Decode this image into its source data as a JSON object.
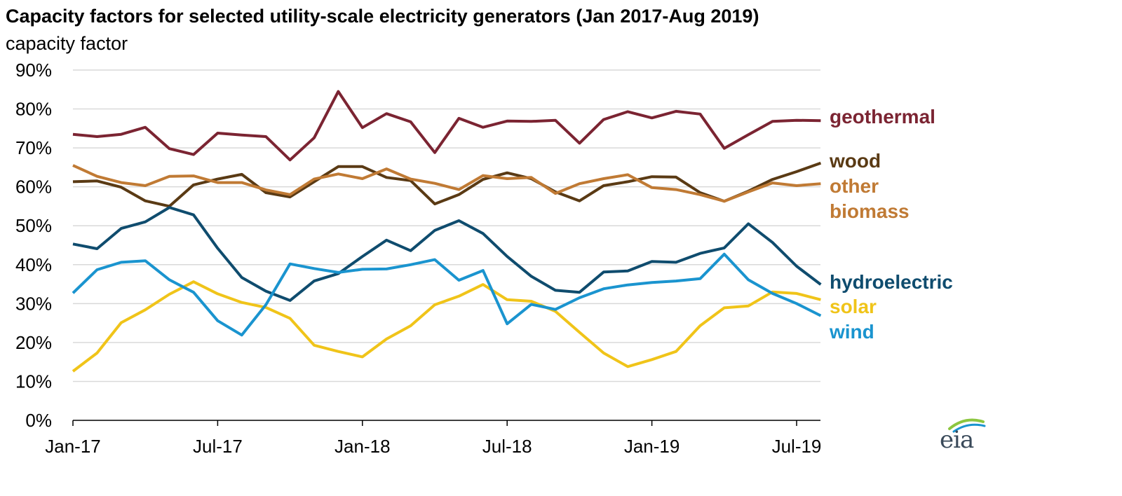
{
  "title": "Capacity factors for selected utility-scale electricity generators (Jan 2017-Aug 2019)",
  "subtitle": "capacity factor",
  "logo_text": "eia",
  "chart_data": {
    "type": "line",
    "title": "Capacity factors for selected utility-scale electricity generators (Jan 2017-Aug 2019)",
    "ylabel": "capacity factor",
    "xlabel": "",
    "ylim": [
      0,
      90
    ],
    "y_ticks": [
      "0%",
      "10%",
      "20%",
      "30%",
      "40%",
      "50%",
      "60%",
      "70%",
      "80%",
      "90%"
    ],
    "y_tick_values": [
      0,
      10,
      20,
      30,
      40,
      50,
      60,
      70,
      80,
      90
    ],
    "x_tick_labels": [
      "Jan-17",
      "Jul-17",
      "Jan-18",
      "Jul-18",
      "Jan-19",
      "Jul-19"
    ],
    "x_tick_indices": [
      0,
      6,
      12,
      18,
      24,
      30
    ],
    "x": [
      "Jan-17",
      "Feb-17",
      "Mar-17",
      "Apr-17",
      "May-17",
      "Jun-17",
      "Jul-17",
      "Aug-17",
      "Sep-17",
      "Oct-17",
      "Nov-17",
      "Dec-17",
      "Jan-18",
      "Feb-18",
      "Mar-18",
      "Apr-18",
      "May-18",
      "Jun-18",
      "Jul-18",
      "Aug-18",
      "Sep-18",
      "Oct-18",
      "Nov-18",
      "Dec-18",
      "Jan-19",
      "Feb-19",
      "Mar-19",
      "Apr-19",
      "May-19",
      "Jun-19",
      "Jul-19",
      "Aug-19"
    ],
    "grid": true,
    "series": [
      {
        "name": "geothermal",
        "color": "#7b2432",
        "values": [
          73.5,
          72.9,
          73.5,
          75.3,
          69.8,
          68.3,
          73.8,
          73.3,
          72.9,
          66.9,
          72.6,
          84.5,
          75.2,
          78.8,
          76.7,
          68.8,
          77.6,
          75.3,
          76.9,
          76.8,
          77.1,
          71.2,
          77.3,
          79.3,
          77.7,
          79.4,
          78.7,
          69.9,
          73.4,
          76.8,
          77.1,
          77.0
        ]
      },
      {
        "name": "wood",
        "color": "#5a3a14",
        "values": [
          61.3,
          61.5,
          59.9,
          56.4,
          55.0,
          60.5,
          62.0,
          63.2,
          58.5,
          57.4,
          61.3,
          65.2,
          65.2,
          62.4,
          61.6,
          55.6,
          58.0,
          61.9,
          63.6,
          62.1,
          58.7,
          56.4,
          60.3,
          61.3,
          62.6,
          62.5,
          58.5,
          56.3,
          58.9,
          61.9,
          63.9,
          66.1
        ]
      },
      {
        "name": "other biomass",
        "color": "#c07a34",
        "values": [
          65.5,
          62.7,
          61.1,
          60.3,
          62.7,
          62.8,
          61.1,
          61.1,
          59.2,
          58.0,
          62.0,
          63.3,
          62.1,
          64.6,
          62.0,
          60.9,
          59.3,
          62.9,
          62.1,
          62.4,
          58.3,
          60.8,
          62.1,
          63.1,
          59.8,
          59.3,
          58.0,
          56.3,
          58.7,
          61.0,
          60.3,
          60.8
        ]
      },
      {
        "name": "hydroelectric",
        "color": "#0f4c6e",
        "values": [
          45.3,
          44.1,
          49.3,
          51.0,
          54.7,
          52.8,
          44.2,
          36.7,
          33.2,
          30.8,
          35.8,
          37.7,
          42.1,
          46.3,
          43.6,
          48.8,
          51.3,
          48.0,
          42.1,
          37.0,
          33.4,
          32.9,
          38.1,
          38.4,
          40.8,
          40.6,
          42.9,
          44.3,
          50.5,
          45.7,
          39.6,
          34.9
        ]
      },
      {
        "name": "solar",
        "color": "#f0c419",
        "values": [
          12.6,
          17.3,
          25.1,
          28.4,
          32.4,
          35.6,
          32.5,
          30.3,
          29.0,
          26.2,
          19.3,
          17.7,
          16.3,
          20.9,
          24.3,
          29.7,
          31.9,
          34.9,
          31.0,
          30.6,
          28.0,
          22.6,
          17.3,
          13.8,
          15.6,
          17.7,
          24.3,
          28.9,
          29.4,
          33.0,
          32.6,
          31.0
        ]
      },
      {
        "name": "wind",
        "color": "#1a94cf",
        "values": [
          32.7,
          38.7,
          40.6,
          41.0,
          36.1,
          32.9,
          25.6,
          21.9,
          29.7,
          40.2,
          39.0,
          38.0,
          38.8,
          38.9,
          40.0,
          41.3,
          36.0,
          38.5,
          24.8,
          29.8,
          28.5,
          31.5,
          33.8,
          34.8,
          35.4,
          35.8,
          36.4,
          42.7,
          36.1,
          32.6,
          30.0,
          26.9
        ]
      }
    ],
    "legend_labels": [
      {
        "series": "geothermal",
        "lines": [
          "geothermal"
        ]
      },
      {
        "series": "wood",
        "lines": [
          "wood"
        ]
      },
      {
        "series": "other biomass",
        "lines": [
          "other",
          "biomass"
        ]
      },
      {
        "series": "hydroelectric",
        "lines": [
          "hydroelectric"
        ]
      },
      {
        "series": "solar",
        "lines": [
          "solar"
        ]
      },
      {
        "series": "wind",
        "lines": [
          "wind"
        ]
      }
    ],
    "legend_position": "right, at line ends"
  }
}
